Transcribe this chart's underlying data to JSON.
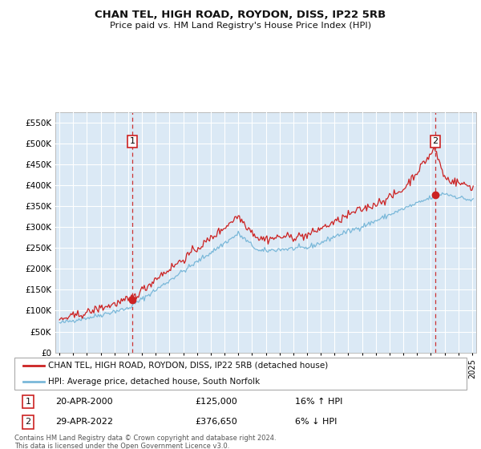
{
  "title": "CHAN TEL, HIGH ROAD, ROYDON, DISS, IP22 5RB",
  "subtitle": "Price paid vs. HM Land Registry's House Price Index (HPI)",
  "ylabel_ticks": [
    "£0",
    "£50K",
    "£100K",
    "£150K",
    "£200K",
    "£250K",
    "£300K",
    "£350K",
    "£400K",
    "£450K",
    "£500K",
    "£550K"
  ],
  "ytick_values": [
    0,
    50000,
    100000,
    150000,
    200000,
    250000,
    300000,
    350000,
    400000,
    450000,
    500000,
    550000
  ],
  "ylim": [
    0,
    575000
  ],
  "xlim_start": 1994.7,
  "xlim_end": 2025.3,
  "sale1_x": 2000.3,
  "sale1_y": 125000,
  "sale2_x": 2022.33,
  "sale2_y": 376650,
  "vline1_x": 2000.3,
  "vline2_x": 2022.33,
  "hpi_color": "#7ab8d9",
  "price_color": "#cc2222",
  "vline_color": "#cc3333",
  "plot_bg": "#dbe9f5",
  "legend_label_price": "CHAN TEL, HIGH ROAD, ROYDON, DISS, IP22 5RB (detached house)",
  "legend_label_hpi": "HPI: Average price, detached house, South Norfolk",
  "annotation1_date": "20-APR-2000",
  "annotation1_price": "£125,000",
  "annotation1_hpi": "16% ↑ HPI",
  "annotation2_date": "29-APR-2022",
  "annotation2_price": "£376,650",
  "annotation2_hpi": "6% ↓ HPI",
  "footer": "Contains HM Land Registry data © Crown copyright and database right 2024.\nThis data is licensed under the Open Government Licence v3.0."
}
